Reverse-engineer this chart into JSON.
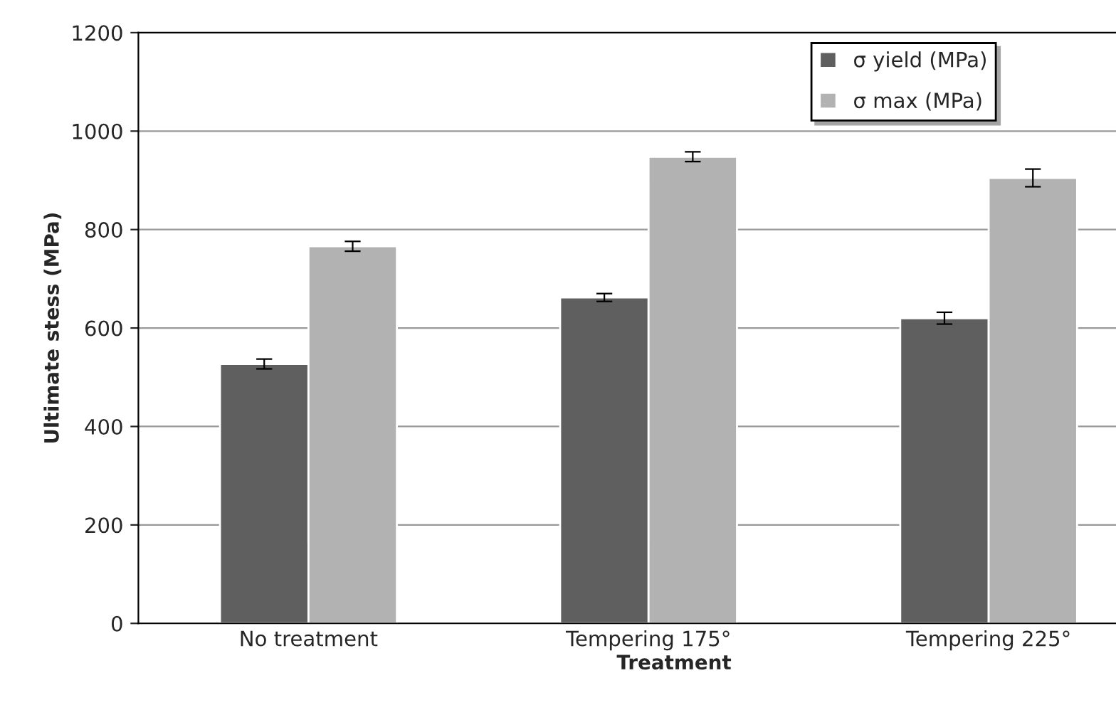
{
  "chart_data": {
    "type": "bar",
    "xlabel": "Treatment",
    "ylabel": "Ultimate stess (MPa)",
    "categories": [
      "No treatment",
      "Tempering 175°",
      "Tempering 225°"
    ],
    "series": [
      {
        "name": "σ yield (MPa)",
        "color": "#5f5f5f",
        "values": [
          527,
          662,
          620
        ],
        "errors": [
          10,
          8,
          12
        ]
      },
      {
        "name": "σ max (MPa)",
        "color": "#b2b2b2",
        "values": [
          766,
          948,
          905
        ],
        "errors": [
          10,
          10,
          18
        ]
      }
    ],
    "ylim": [
      0,
      1200
    ],
    "yticks": [
      0,
      200,
      400,
      600,
      800,
      1000,
      1200
    ],
    "grid": "y",
    "legend": "top right"
  }
}
